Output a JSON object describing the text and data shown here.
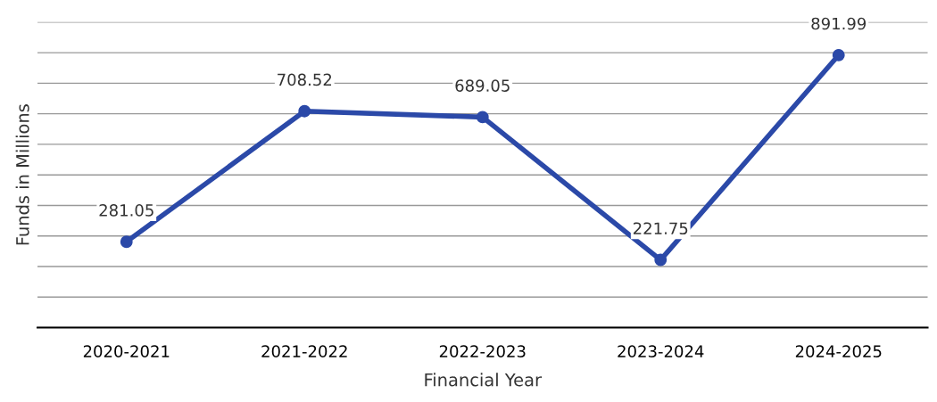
{
  "chart_data": {
    "type": "line",
    "xlabel": "Financial Year",
    "ylabel": "Funds in Millions",
    "categories": [
      "2020-2021",
      "2021-2022",
      "2022-2023",
      "2023-2024",
      "2024-2025"
    ],
    "series": [
      {
        "color": "#2b49a8",
        "values": [
          281.05,
          708.52,
          689.05,
          221.75,
          891.99
        ]
      }
    ],
    "ylim": [
      0,
      1000
    ],
    "yticks": [
      {
        "value": 0,
        "label": null
      },
      {
        "value": 100,
        "label": null
      },
      {
        "value": 200,
        "label": null
      },
      {
        "value": 300,
        "label": null
      },
      {
        "value": 400,
        "label": null
      },
      {
        "value": 500,
        "label": null
      },
      {
        "value": 600,
        "label": null
      },
      {
        "value": 700,
        "label": null
      },
      {
        "value": 800,
        "label": null
      },
      {
        "value": 900,
        "label": null
      },
      {
        "value": 1000,
        "label": null
      }
    ],
    "tick_labels": "x",
    "grid": "y",
    "marker": "circle",
    "line_style": "solid",
    "data_labels": true
  }
}
